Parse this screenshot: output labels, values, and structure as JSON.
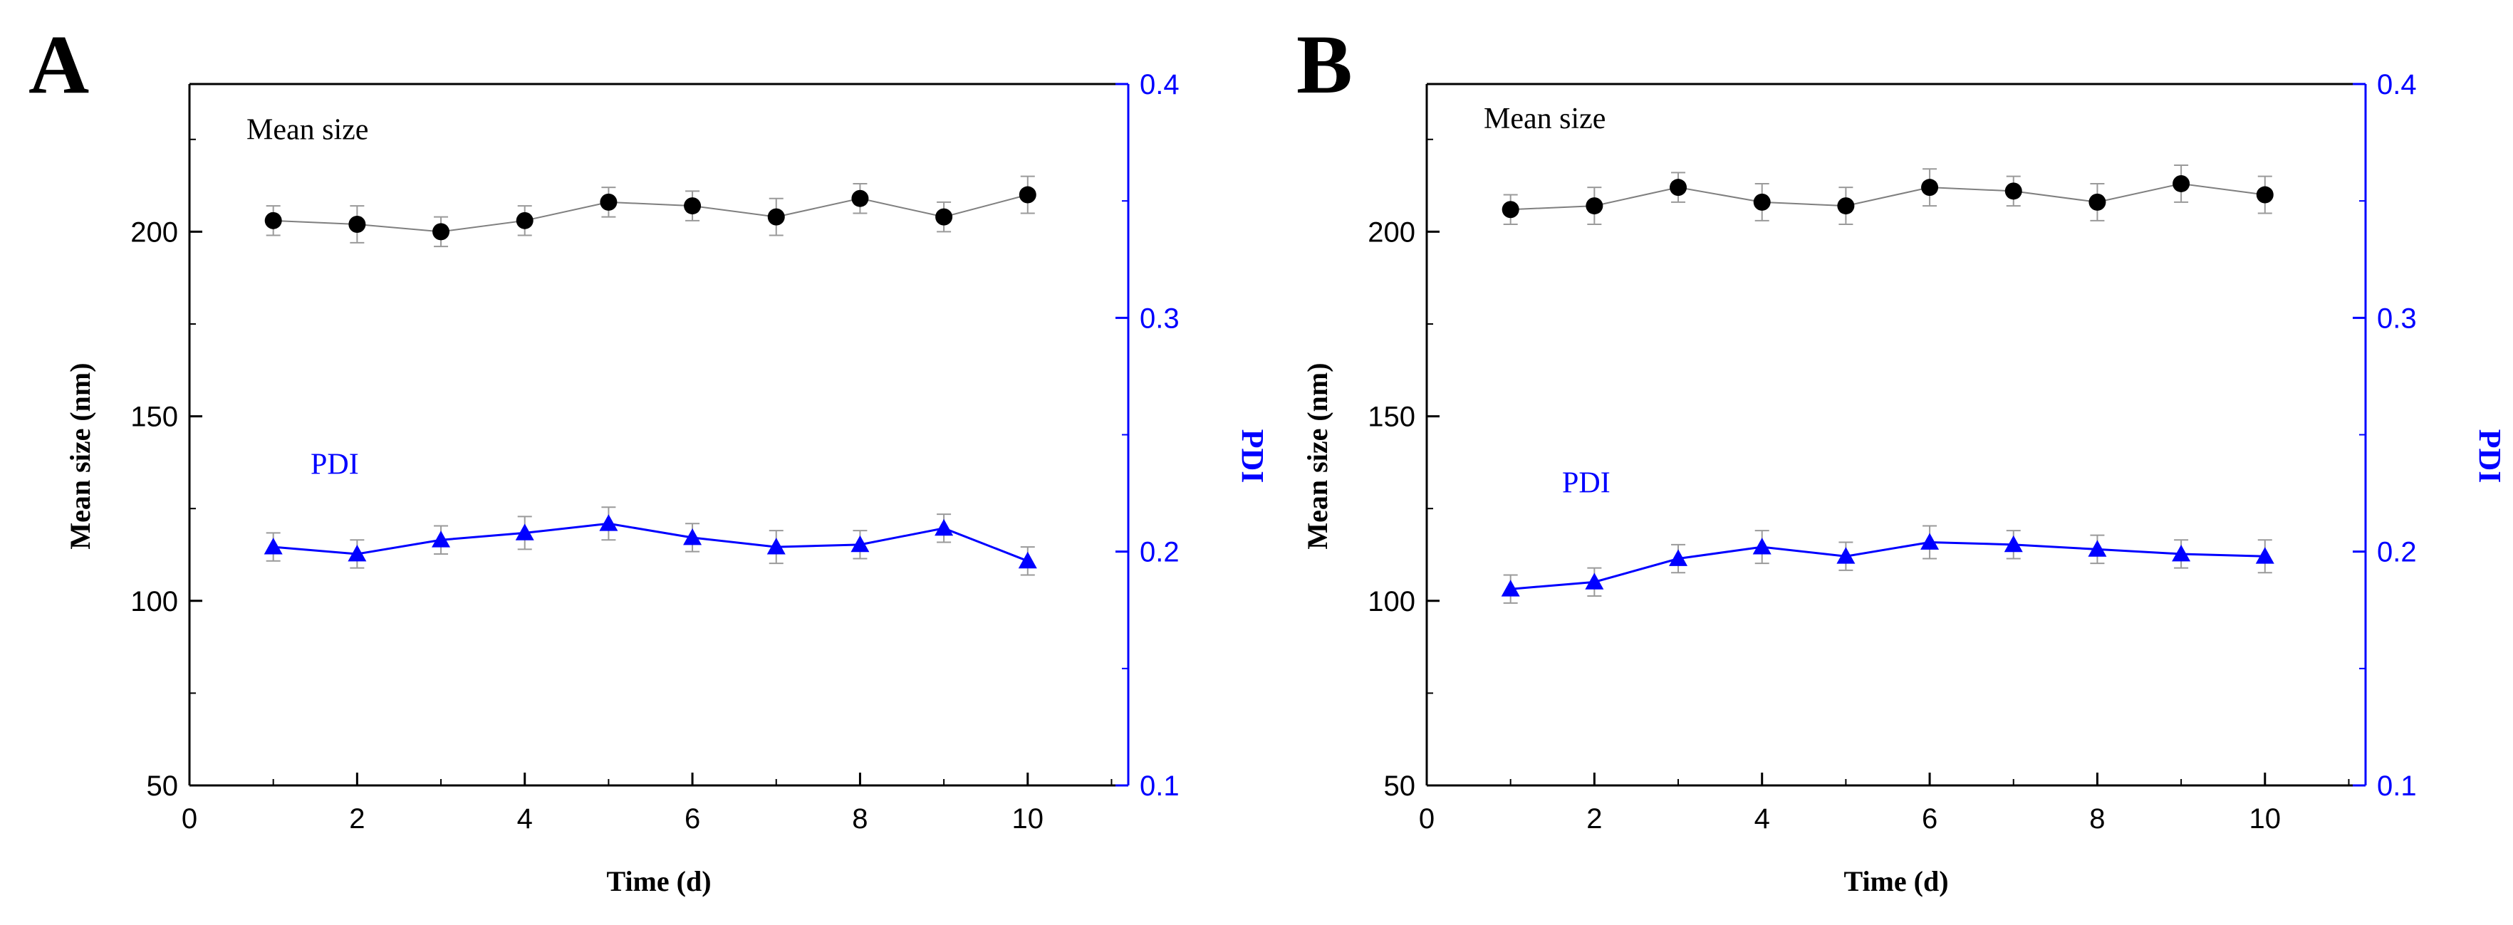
{
  "colors": {
    "axis": "#000000",
    "mean_series": "#000000",
    "mean_line": "#7f7f7f",
    "pdi_series": "#0000ff",
    "error_bar": "#9a9a9a"
  },
  "chart_data": [
    {
      "panel": "A",
      "type": "line",
      "xlabel": "Time (d)",
      "ylabel": "Mean size (nm)",
      "y2label": "PDI",
      "xlim": [
        0,
        11.2
      ],
      "ylim": [
        50,
        240
      ],
      "y2lim": [
        0.1,
        0.4
      ],
      "xticks": [
        "0",
        "2",
        "4",
        "6",
        "8",
        "10"
      ],
      "yticks": [
        "50",
        "100",
        "150",
        "200"
      ],
      "y2ticks": [
        "0.1",
        "0.2",
        "0.3",
        "0.4"
      ],
      "series": [
        {
          "name": "Mean size",
          "axis": "left",
          "marker": "circle",
          "x": [
            1,
            2,
            3,
            4,
            5,
            6,
            7,
            8,
            9,
            10
          ],
          "y": [
            203,
            202,
            200,
            203,
            208,
            207,
            204,
            209,
            204,
            210
          ],
          "err": [
            4,
            5,
            4,
            4,
            4,
            4,
            5,
            4,
            4,
            5
          ]
        },
        {
          "name": "PDI",
          "axis": "right",
          "marker": "triangle",
          "x": [
            1,
            2,
            3,
            4,
            5,
            6,
            7,
            8,
            9,
            10
          ],
          "y": [
            0.202,
            0.199,
            0.205,
            0.208,
            0.212,
            0.206,
            0.202,
            0.203,
            0.21,
            0.196
          ],
          "err": [
            0.006,
            0.006,
            0.006,
            0.007,
            0.007,
            0.006,
            0.007,
            0.006,
            0.006,
            0.006
          ]
        }
      ],
      "annotations": [
        "Mean size",
        "PDI"
      ]
    },
    {
      "panel": "B",
      "type": "line",
      "xlabel": "Time (d)",
      "ylabel": "Mean size (nm)",
      "y2label": "PDI",
      "xlim": [
        0,
        11.2
      ],
      "ylim": [
        50,
        240
      ],
      "y2lim": [
        0.1,
        0.4
      ],
      "xticks": [
        "0",
        "2",
        "4",
        "6",
        "8",
        "10"
      ],
      "yticks": [
        "50",
        "100",
        "150",
        "200"
      ],
      "y2ticks": [
        "0.1",
        "0.2",
        "0.3",
        "0.4"
      ],
      "series": [
        {
          "name": "Mean size",
          "axis": "left",
          "marker": "circle",
          "x": [
            1,
            2,
            3,
            4,
            5,
            6,
            7,
            8,
            9,
            10
          ],
          "y": [
            206,
            207,
            212,
            208,
            207,
            212,
            211,
            208,
            213,
            210
          ],
          "err": [
            4,
            5,
            4,
            5,
            5,
            5,
            4,
            5,
            5,
            5
          ]
        },
        {
          "name": "PDI",
          "axis": "right",
          "marker": "triangle",
          "x": [
            1,
            2,
            3,
            4,
            5,
            6,
            7,
            8,
            9,
            10
          ],
          "y": [
            0.184,
            0.187,
            0.197,
            0.202,
            0.198,
            0.204,
            0.203,
            0.201,
            0.199,
            0.198
          ],
          "err": [
            0.006,
            0.006,
            0.006,
            0.007,
            0.006,
            0.007,
            0.006,
            0.006,
            0.006,
            0.007
          ]
        }
      ],
      "annotations": [
        "Mean size",
        "PDI"
      ]
    }
  ]
}
